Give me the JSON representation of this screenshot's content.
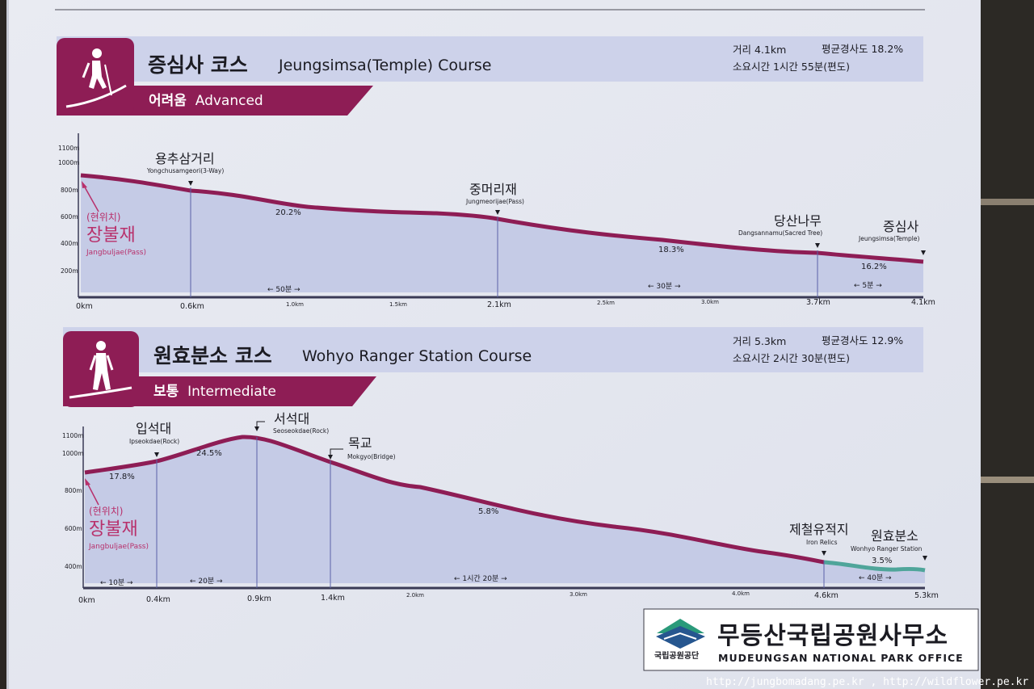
{
  "course1": {
    "title_ko": "증심사 코스",
    "title_en": "Jeungsimsa(Temple) Course",
    "level_ko": "어려움",
    "level_en": "Advanced",
    "distance": "거리 4.1km",
    "avg_slope": "평균경사도 18.2%",
    "time": "소요시간 1시간 55분(편도)",
    "yticks": [
      "1100m",
      "1000m",
      "800m",
      "600m",
      "400m",
      "200m"
    ],
    "xticks_major": [
      "0km",
      "0.6km",
      "2.1km",
      "3.7km",
      "4.1km"
    ],
    "xticks_minor": [
      "1.0km",
      "1.5km",
      "2.5km",
      "3.0km"
    ],
    "waypoints": [
      {
        "ko": "용추삼거리",
        "en": "Yongchusamgeori(3-Way)"
      },
      {
        "ko": "중머리재",
        "en": "Jungmeorijae(Pass)"
      },
      {
        "ko": "당산나무",
        "en": "Dangsannamu(Sacred Tree)"
      },
      {
        "ko": "증심사",
        "en": "Jeungsimsa(Temple)"
      }
    ],
    "grades": [
      "20.2%",
      "18.3%",
      "16.2%"
    ],
    "durations": [
      "← 50분 →",
      "← 30분 →",
      "← 5분 →"
    ],
    "current": {
      "label": "(현위치)",
      "ko": "장불재",
      "en": "Jangbuljae(Pass)"
    }
  },
  "course2": {
    "title_ko": "원효분소 코스",
    "title_en": "Wohyo Ranger Station Course",
    "level_ko": "보통",
    "level_en": "Intermediate",
    "distance": "거리 5.3km",
    "avg_slope": "평균경사도 12.9%",
    "time": "소요시간 2시간 30분(편도)",
    "yticks": [
      "1100m",
      "1000m",
      "800m",
      "600m",
      "400m"
    ],
    "xticks_major": [
      "0km",
      "0.4km",
      "0.9km",
      "1.4km",
      "4.6km",
      "5.3km"
    ],
    "xticks_minor": [
      "2.0km",
      "3.0km",
      "4.0km"
    ],
    "waypoints": [
      {
        "ko": "입석대",
        "en": "Ipseokdae(Rock)"
      },
      {
        "ko": "서석대",
        "en": "Seoseokdae(Rock)"
      },
      {
        "ko": "목교",
        "en": "Mokgyo(Bridge)"
      },
      {
        "ko": "제철유적지",
        "en": "Iron Relics"
      },
      {
        "ko": "원효분소",
        "en": "Wonhyo Ranger Station"
      }
    ],
    "grades": [
      "17.8%",
      "24.5%",
      "5.8%",
      "3.5%"
    ],
    "durations": [
      "← 10분 →",
      "← 20분 →",
      "← 1시간 20분 →",
      "← 40분 →"
    ],
    "current": {
      "label": "(현위치)",
      "ko": "장불재",
      "en": "Jangbuljae(Pass)"
    }
  },
  "office": {
    "agency": "국립공원공단",
    "name_ko": "무등산국립공원사무소",
    "name_en": "MUDEUNGSAN NATIONAL PARK OFFICE"
  },
  "watermark": "http://jungbomadang.pe.kr , http://wildflower.pe.kr",
  "colors": {
    "accent": "#8e1d55",
    "trail": "#8e1d55",
    "trail_teal": "#4fa59a",
    "fill": "#c5cbe6",
    "board": "#e7e9f1"
  }
}
